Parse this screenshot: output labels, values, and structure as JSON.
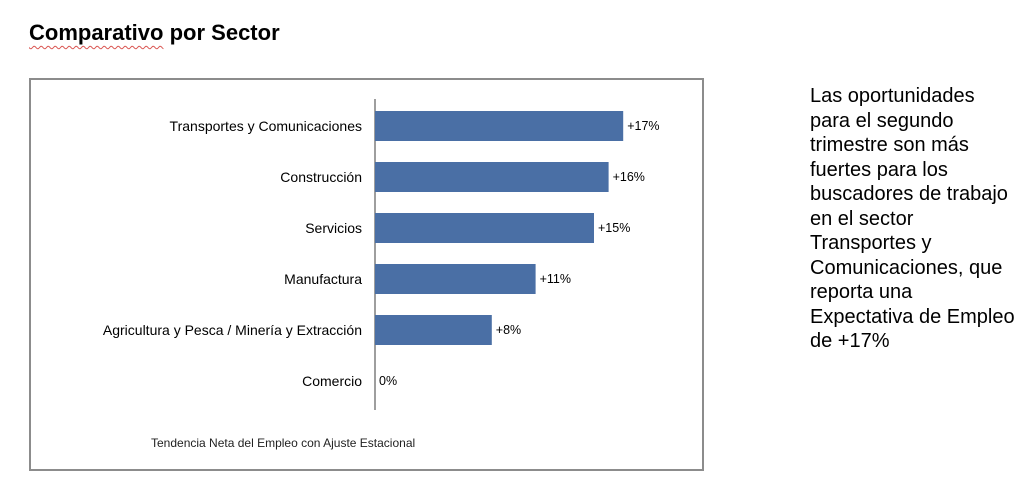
{
  "header": {
    "title_part1": "Comparativo",
    "title_part2": "por Sector"
  },
  "side_note": "Las oportunidades para el segundo trimestre son más fuertes para los buscadores de trabajo en el sector Transportes y Comunicaciones, que reporta una Expectativa de Empleo de +17%",
  "chart_data": {
    "type": "bar",
    "orientation": "horizontal",
    "categories": [
      "Transportes y Comunicaciones",
      "Construcción",
      "Servicios",
      "Manufactura",
      "Agricultura y Pesca / Minería y Extracción",
      "Comercio"
    ],
    "values": [
      17,
      16,
      15,
      11,
      8,
      0
    ],
    "value_labels": [
      "+17%",
      "+16%",
      "+15%",
      "+11%",
      "+8%",
      "0%"
    ],
    "xlabel": "Tendencia Neta del Empleo con Ajuste Estacional",
    "ylabel": "",
    "xlim": [
      0,
      17
    ],
    "grid": false,
    "legend": "none",
    "bar_color": "#4a6fa5"
  }
}
